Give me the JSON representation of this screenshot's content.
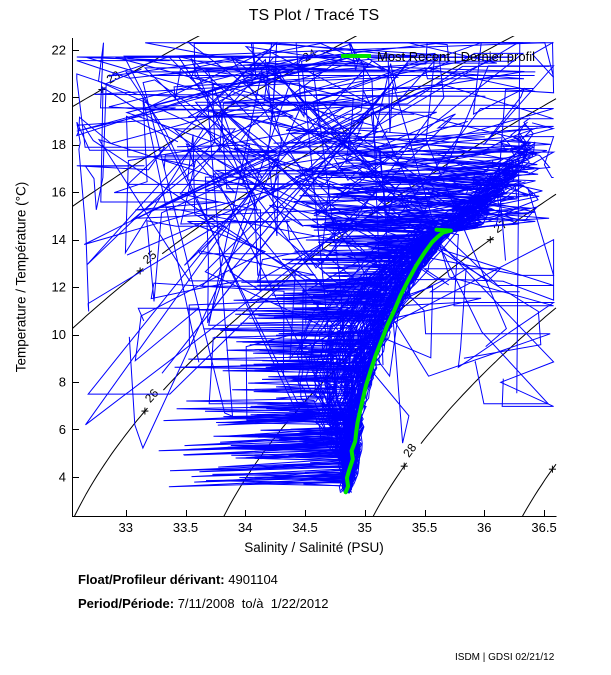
{
  "title": "TS Plot / Tracé TS",
  "legend": {
    "label": "Most Recent | Dernier profil",
    "line_color": "#00e300"
  },
  "axes": {
    "x_label": "Salinity / Salinité (PSU)",
    "y_label": "Temperature / Température (°C)",
    "x_ticks": [
      33,
      33.5,
      34,
      34.5,
      35,
      35.5,
      36,
      36.5
    ],
    "y_ticks": [
      4,
      6,
      8,
      10,
      12,
      14,
      16,
      18,
      20,
      22
    ],
    "x_range": [
      32.55,
      36.6
    ],
    "y_range": [
      2.35,
      22.5
    ]
  },
  "chart_data": {
    "type": "line",
    "title": "TS Plot / Tracé TS",
    "xlabel": "Salinity / Salinité (PSU)",
    "ylabel": "Temperature / Température (°C)",
    "xlim": [
      32.55,
      36.6
    ],
    "ylim": [
      2.35,
      22.5
    ],
    "grid": false,
    "legend_position": "top-right-inside-no-box",
    "density_contours": {
      "description": "sigma-t isopycnals computed from EOS-80 at surface pressure",
      "color": "#000000",
      "levels": [
        23,
        24,
        25,
        26,
        27,
        28,
        29
      ],
      "labels": [
        {
          "level": 23,
          "S": 32.8,
          "show_text": true
        },
        {
          "level": 24,
          "S": 34.44,
          "show_text": true
        },
        {
          "level": 25,
          "S": 33.12,
          "show_text": true
        },
        {
          "level": 26,
          "S": 33.16,
          "show_text": true
        },
        {
          "level": 27,
          "S": 36.05,
          "show_text": true
        },
        {
          "level": 28,
          "S": 35.33,
          "show_text": true
        },
        {
          "level": 29,
          "S": 36.57,
          "show_text": false
        }
      ]
    },
    "most_recent_profile": {
      "color": "#00e300",
      "line_width": 4,
      "points_ST": [
        [
          34.84,
          3.35
        ],
        [
          34.86,
          3.6
        ],
        [
          34.85,
          3.95
        ],
        [
          34.87,
          4.3
        ],
        [
          34.9,
          4.75
        ],
        [
          34.89,
          5.1
        ],
        [
          34.92,
          5.5
        ],
        [
          34.93,
          5.95
        ],
        [
          34.94,
          6.3
        ],
        [
          34.96,
          6.75
        ],
        [
          34.98,
          7.2
        ],
        [
          35.01,
          7.85
        ],
        [
          35.05,
          8.5
        ],
        [
          35.09,
          9.1
        ],
        [
          35.14,
          9.75
        ],
        [
          35.19,
          10.4
        ],
        [
          35.245,
          11.0
        ],
        [
          35.3,
          11.65
        ],
        [
          35.365,
          12.3
        ],
        [
          35.43,
          12.9
        ],
        [
          35.5,
          13.45
        ],
        [
          35.565,
          13.9
        ],
        [
          35.61,
          14.12
        ],
        [
          35.655,
          14.3
        ],
        [
          35.72,
          14.38
        ],
        [
          35.6,
          14.42
        ]
      ]
    },
    "profiles": {
      "color": "#0000ff",
      "line_width": 1,
      "style": "all historical float profiles (dense spaghetti)",
      "mean_curve_T": [
        3.3,
        4,
        5,
        6,
        7,
        8,
        9,
        10,
        11,
        12,
        13,
        14,
        14.5,
        15,
        16,
        17,
        17.5
      ],
      "mean_curve_S": [
        34.85,
        34.88,
        34.91,
        34.94,
        34.99,
        35.05,
        35.12,
        35.2,
        35.29,
        35.39,
        35.51,
        35.63,
        35.72,
        35.85,
        36.05,
        36.22,
        36.33
      ],
      "band_count": 100,
      "scatter_count": 26,
      "seed": 4901104
    }
  },
  "annotations": {
    "float_label": "Float/Profileur dérivant:",
    "float_value": " 4901104",
    "period_label": "Period/Période:",
    "period_value": " 7/11/2008  to/à  1/22/2012",
    "footer": "ISDM | GDSI 02/21/12"
  }
}
